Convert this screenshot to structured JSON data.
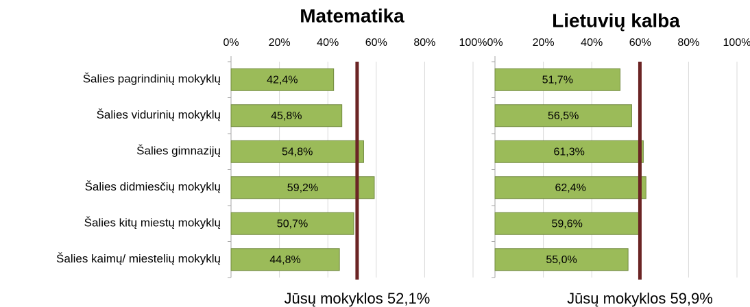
{
  "chart_data": [
    {
      "type": "bar",
      "title": "Matematika",
      "categories": [
        "Šalies pagrindinių mokyklų",
        "Šalies vidurinių mokyklų",
        "Šalies gimnazijų",
        "Šalies didmiesčių mokyklų",
        "Šalies kitų miestų mokyklų",
        "Šalies kaimų/ miestelių mokyklų"
      ],
      "values": [
        42.4,
        45.8,
        54.8,
        59.2,
        50.7,
        44.8
      ],
      "value_labels": [
        "42,4%",
        "45,8%",
        "54,8%",
        "59,2%",
        "50,7%",
        "44,8%"
      ],
      "color": "#9bbb59",
      "xlim": [
        0,
        100
      ],
      "xticks": [
        {
          "value": 0,
          "label": "0%"
        },
        {
          "value": 20,
          "label": "20%"
        },
        {
          "value": 40,
          "label": "40%"
        },
        {
          "value": 60,
          "label": "60%"
        },
        {
          "value": 80,
          "label": "80%"
        },
        {
          "value": 100,
          "label": "100%"
        }
      ],
      "grid": true,
      "reference": {
        "value": 52.1,
        "label": "Jūsų mokyklos 52,1%",
        "color": "#6b2424"
      }
    },
    {
      "type": "bar",
      "title": "Lietuvių kalba",
      "values": [
        51.7,
        56.5,
        61.3,
        62.4,
        59.6,
        55.0
      ],
      "value_labels": [
        "51,7%",
        "56,5%",
        "61,3%",
        "62,4%",
        "59,6%",
        "55,0%"
      ],
      "color": "#9bbb59",
      "xlim": [
        0,
        100
      ],
      "xticks": [
        {
          "value": 0,
          "label": "0%"
        },
        {
          "value": 20,
          "label": "20%"
        },
        {
          "value": 40,
          "label": "40%"
        },
        {
          "value": 60,
          "label": "60%"
        },
        {
          "value": 80,
          "label": "80%"
        },
        {
          "value": 100,
          "label": "100%"
        }
      ],
      "grid": true,
      "reference": {
        "value": 59.9,
        "label": "Jūsų mokyklos 59,9%",
        "color": "#6b2424"
      }
    }
  ]
}
